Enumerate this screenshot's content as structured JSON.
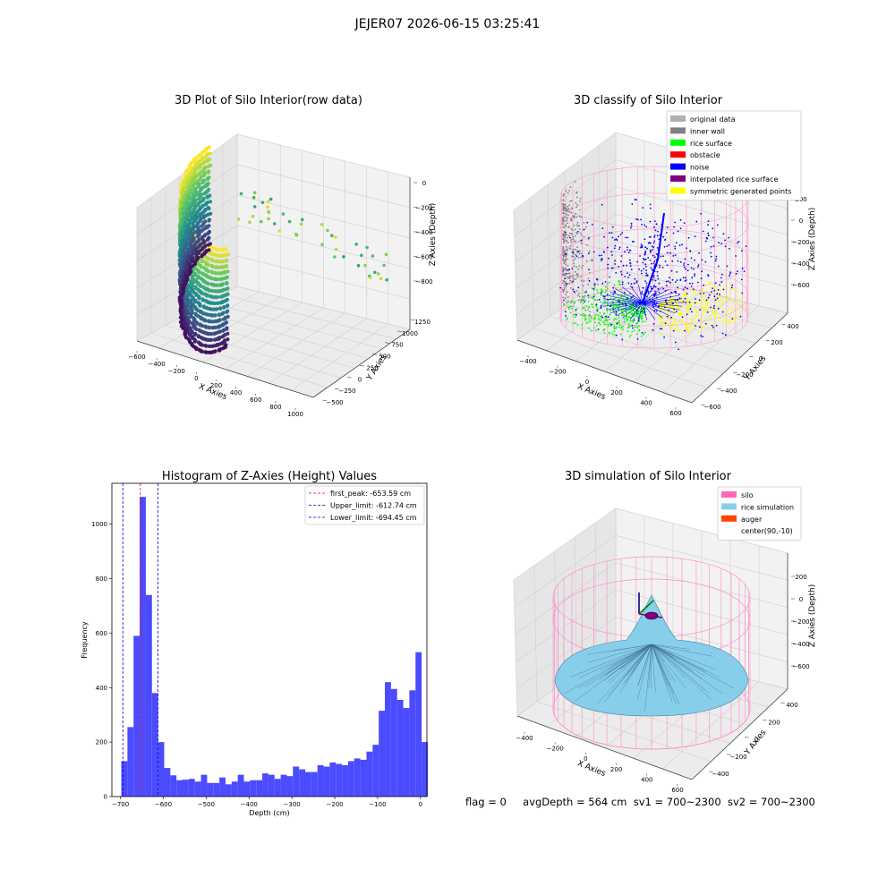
{
  "figure": {
    "suptitle": "JEJER07 2026-06-15 03:25:41"
  },
  "status": {
    "flag": "flag = 0",
    "avg_depth": "avgDepth = 564 cm",
    "sv1": "sv1 = 700~2300",
    "sv2": "sv2 = 700~2300"
  },
  "colors": {
    "original": "#b0b0b0",
    "inner_wall": "#808080",
    "rice_surface": "#00ff00",
    "obstacle": "#ff0000",
    "noise": "#0000ff",
    "interpolated": "#800080",
    "symmetric": "#ffff00",
    "silo": "#ff69b4",
    "rice_sim": "#87ceeb",
    "auger": "#ff4500",
    "hist_bar": "#4b4bff",
    "peak_line": "#ff0000",
    "limit_line": "#0000cc"
  },
  "chart_data": [
    {
      "type": "scatter",
      "subtype": "3d",
      "title": "3D Plot of Silo Interior(row data)",
      "xlabel": "X Axies",
      "ylabel": "Y Axies",
      "zlabel": "Z Axies (Depth)",
      "x_ticks": [
        "−600",
        "−400",
        "−200",
        "0",
        "200",
        "400",
        "600",
        "800",
        "1000"
      ],
      "y_ticks": [
        "−500",
        "−250",
        "0",
        "250",
        "500",
        "750",
        "1000",
        "1250"
      ],
      "z_ticks": [
        "0",
        "−200",
        "−400",
        "−600",
        "−800"
      ],
      "colormap": "viridis",
      "xlim": [
        -600,
        1000
      ],
      "ylim": [
        -500,
        1250
      ],
      "zlim": [
        -900,
        0
      ]
    },
    {
      "type": "scatter",
      "subtype": "3d",
      "title": "3D classify of Silo Interior",
      "xlabel": "X Axies",
      "ylabel": "Y Axies",
      "zlabel": "Z Axies (Depth)",
      "x_ticks": [
        "−400",
        "−200",
        "0",
        "200",
        "400",
        "600"
      ],
      "y_ticks": [
        "−600",
        "−400",
        "−200",
        "0",
        "200",
        "400"
      ],
      "z_ticks": [
        "200",
        "0",
        "−200",
        "−400",
        "−600"
      ],
      "legend_position": "top-right",
      "legend": [
        "original data",
        "inner wall",
        "rice surface",
        "obstacle",
        "noise",
        "interpolated rice surface",
        "symmetric generated points"
      ]
    },
    {
      "type": "bar",
      "subtype": "histogram",
      "title": "Histogram of Z-Axies (Height) Values",
      "xlabel": "Depth (cm)",
      "ylabel": "Frequency",
      "xlim": [
        -720,
        15
      ],
      "ylim": [
        0,
        1150
      ],
      "x_ticks": [
        -700,
        -600,
        -500,
        -400,
        -300,
        -200,
        -100,
        0
      ],
      "y_ticks": [
        0,
        200,
        400,
        600,
        800,
        1000
      ],
      "bin_start": -698,
      "bin_width": 14.3,
      "values": [
        130,
        255,
        590,
        1100,
        740,
        380,
        200,
        105,
        78,
        60,
        62,
        65,
        55,
        80,
        50,
        50,
        70,
        45,
        55,
        80,
        55,
        60,
        60,
        85,
        80,
        65,
        80,
        75,
        110,
        100,
        90,
        90,
        115,
        110,
        125,
        120,
        115,
        130,
        140,
        135,
        165,
        190,
        315,
        420,
        395,
        355,
        325,
        390,
        530,
        200
      ],
      "vlines": [
        {
          "x": -653.59,
          "label": "first_peak: -653.59 cm",
          "color": "#ff0000"
        },
        {
          "x": -612.74,
          "label": "Upper_limit: -612.74 cm",
          "color": "#0000cc"
        },
        {
          "x": -694.45,
          "label": "Lower_limit: -694.45 cm",
          "color": "#0000cc"
        }
      ],
      "legend_position": "top-right"
    },
    {
      "type": "surface",
      "subtype": "3d",
      "title": "3D simulation of Silo Interior",
      "xlabel": "X Axies",
      "ylabel": "Y Axies",
      "zlabel": "Z Axies (Depth)",
      "x_ticks": [
        "−400",
        "−200",
        "0",
        "200",
        "400",
        "600"
      ],
      "y_ticks": [
        "−400",
        "−200",
        "0",
        "200",
        "400"
      ],
      "z_ticks": [
        "200",
        "0",
        "−200",
        "−400",
        "−600"
      ],
      "legend_position": "top-right",
      "legend": [
        "silo",
        "rice simulation",
        "auger",
        "center(90,-10)"
      ]
    }
  ]
}
